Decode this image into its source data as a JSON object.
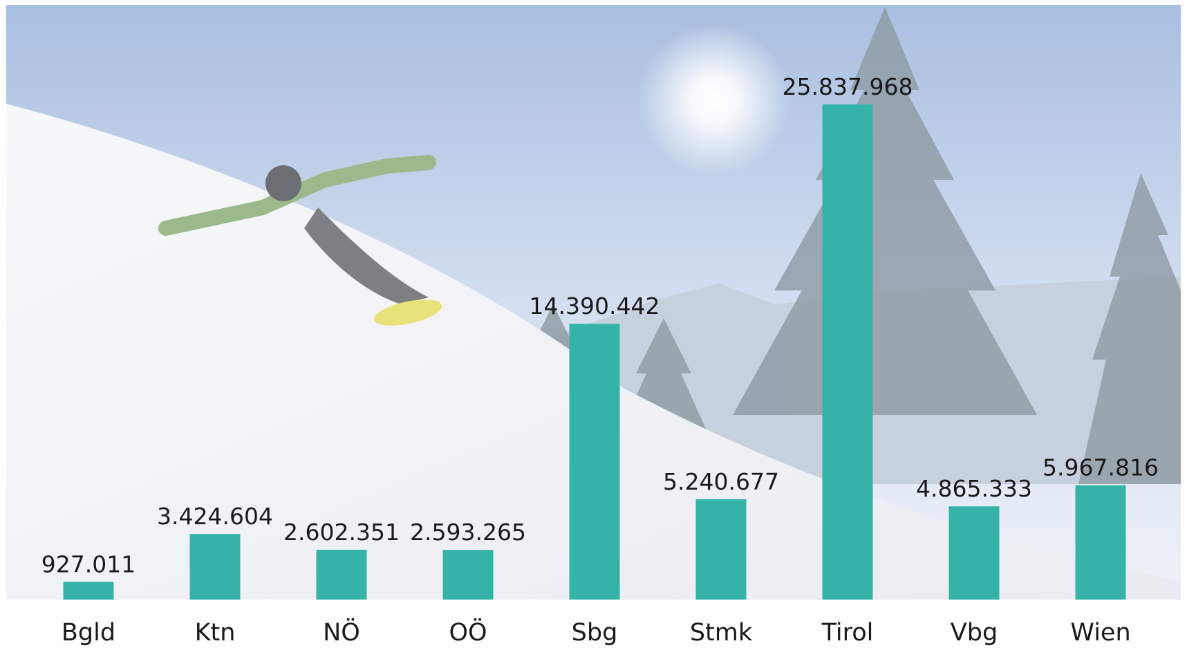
{
  "chart_data": {
    "type": "bar",
    "categories": [
      "Bgld",
      "Ktn",
      "NÖ",
      "OÖ",
      "Sbg",
      "Stmk",
      "Tirol",
      "Vbg",
      "Wien"
    ],
    "values": [
      927011,
      3424604,
      2602351,
      2593265,
      14390442,
      5240677,
      25837968,
      4865333,
      5967816
    ],
    "value_labels": [
      "927.011",
      "3.424.604",
      "2.602.351",
      "2.593.265",
      "14.390.442",
      "5.240.677",
      "25.837.968",
      "4.865.333",
      "5.967.816"
    ],
    "color": "#36b3a8"
  }
}
